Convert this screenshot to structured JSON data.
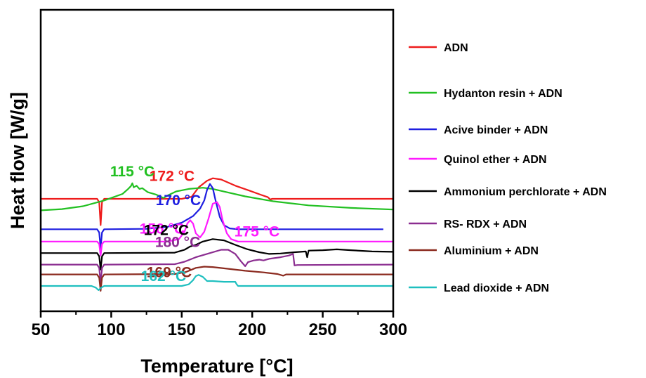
{
  "chart_data": {
    "type": "line",
    "title": "",
    "xlabel": "Temperature [°C]",
    "ylabel": "Heat flow [W/g]",
    "xlim": [
      50,
      300
    ],
    "xticks": [
      50,
      100,
      150,
      200,
      250,
      300
    ],
    "yticks_shown": false,
    "grid": false,
    "legend_position": "right, outside plot",
    "series": [
      {
        "name": "ADN",
        "color": "#ee1c1c",
        "offset": 10.6,
        "points": [
          [
            50,
            0
          ],
          [
            90,
            0
          ],
          [
            91.5,
            -0.4
          ],
          [
            92.5,
            -3.2
          ],
          [
            93.5,
            -0.4
          ],
          [
            95,
            0
          ],
          [
            150,
            0
          ],
          [
            157,
            0.25
          ],
          [
            162,
            1.4
          ],
          [
            168,
            2.2
          ],
          [
            172,
            2.5
          ],
          [
            178,
            2.35
          ],
          [
            188,
            1.6
          ],
          [
            198,
            1.0
          ],
          [
            206,
            0.5
          ],
          [
            211,
            0.2
          ],
          [
            213,
            -0.1
          ],
          [
            214,
            0
          ],
          [
            300,
            0
          ]
        ],
        "peak_label": {
          "text": "172 °C",
          "x": 172
        }
      },
      {
        "name": "Hydanton resin + ADN",
        "color": "#22c022",
        "offset": 9.2,
        "points": [
          [
            50,
            0
          ],
          [
            65,
            0.15
          ],
          [
            80,
            0.5
          ],
          [
            95,
            1.2
          ],
          [
            108,
            2.0
          ],
          [
            112,
            2.6
          ],
          [
            114,
            2.95
          ],
          [
            115,
            3.3
          ],
          [
            116,
            2.8
          ],
          [
            118,
            3.0
          ],
          [
            120,
            2.6
          ],
          [
            122,
            2.7
          ],
          [
            126,
            2.2
          ],
          [
            132,
            1.9
          ],
          [
            137,
            1.5
          ],
          [
            140,
            1.8
          ],
          [
            146,
            2.3
          ],
          [
            155,
            2.6
          ],
          [
            165,
            2.75
          ],
          [
            172,
            2.6
          ],
          [
            182,
            2.2
          ],
          [
            195,
            1.7
          ],
          [
            215,
            1.1
          ],
          [
            240,
            0.6
          ],
          [
            270,
            0.3
          ],
          [
            300,
            0.1
          ]
        ],
        "peak_label": {
          "text": "115 °C",
          "x": 115
        }
      },
      {
        "name": "Acive binder + ADN",
        "color": "#1e1ee0",
        "offset": 6.9,
        "points": [
          [
            50,
            0
          ],
          [
            90,
            0
          ],
          [
            91.5,
            -0.4
          ],
          [
            92.5,
            -2.3
          ],
          [
            93.5,
            -0.4
          ],
          [
            95,
            0
          ],
          [
            125,
            0.05
          ],
          [
            140,
            0.3
          ],
          [
            150,
            0.8
          ],
          [
            158,
            1.6
          ],
          [
            163,
            2.5
          ],
          [
            166,
            3.5
          ],
          [
            168,
            4.8
          ],
          [
            170,
            5.5
          ],
          [
            172,
            5.0
          ],
          [
            174,
            3.5
          ],
          [
            177,
            1.5
          ],
          [
            180,
            0.5
          ],
          [
            184,
            0.1
          ],
          [
            190,
            0
          ],
          [
            293,
            0
          ]
        ],
        "peak_label": {
          "text": "170 °C",
          "x": 170
        }
      },
      {
        "name": "Quinol ether + ADN",
        "color": "#ff1aff",
        "offset": 5.4,
        "points": [
          [
            50,
            0
          ],
          [
            90,
            0
          ],
          [
            91.5,
            -0.3
          ],
          [
            92.5,
            -1.7
          ],
          [
            93.5,
            -0.3
          ],
          [
            95,
            0
          ],
          [
            140,
            0
          ],
          [
            148,
            0.3
          ],
          [
            152,
            1.2
          ],
          [
            154,
            2.2
          ],
          [
            156,
            2.6
          ],
          [
            158,
            2.2
          ],
          [
            160,
            1.0
          ],
          [
            163,
            0.5
          ],
          [
            166,
            1.2
          ],
          [
            169,
            2.8
          ],
          [
            172,
            4.6
          ],
          [
            175,
            4.8
          ],
          [
            177,
            4.2
          ],
          [
            179,
            2.6
          ],
          [
            182,
            1.0
          ],
          [
            185,
            0.3
          ],
          [
            190,
            0
          ],
          [
            300,
            0
          ]
        ],
        "peak_label": {
          "text": "156 °C",
          "x": 156
        },
        "peak_label_2": {
          "text": "175 °C",
          "x": 175
        }
      },
      {
        "name": "Ammonium perchlorate + ADN",
        "color": "#000000",
        "offset": 4.0,
        "points": [
          [
            50,
            0
          ],
          [
            90,
            0
          ],
          [
            91.5,
            -0.4
          ],
          [
            92.5,
            -2.0
          ],
          [
            93.5,
            -0.4
          ],
          [
            95,
            0
          ],
          [
            145,
            0.05
          ],
          [
            152,
            0.4
          ],
          [
            156,
            0.8
          ],
          [
            160,
            1.0
          ],
          [
            165,
            1.4
          ],
          [
            172,
            1.7
          ],
          [
            180,
            1.55
          ],
          [
            188,
            1.0
          ],
          [
            196,
            0.5
          ],
          [
            205,
            0.1
          ],
          [
            212,
            -0.1
          ],
          [
            220,
            -0.05
          ],
          [
            230,
            0.1
          ],
          [
            238,
            0.2
          ],
          [
            239,
            -0.5
          ],
          [
            240,
            0.3
          ],
          [
            250,
            0.35
          ],
          [
            260,
            0.45
          ],
          [
            270,
            0.35
          ],
          [
            285,
            0.2
          ],
          [
            300,
            0.15
          ]
        ],
        "peak_label": {
          "text": "172 °C",
          "x": 172
        }
      },
      {
        "name": "RS- RDX + ADN",
        "color": "#8b2d90",
        "offset": 2.6,
        "points": [
          [
            50,
            0
          ],
          [
            90,
            0
          ],
          [
            91.5,
            -0.4
          ],
          [
            92.5,
            -2.3
          ],
          [
            93.5,
            -0.4
          ],
          [
            95,
            0
          ],
          [
            145,
            0.05
          ],
          [
            152,
            0.35
          ],
          [
            160,
            0.9
          ],
          [
            170,
            1.4
          ],
          [
            178,
            1.8
          ],
          [
            183,
            1.8
          ],
          [
            188,
            1.3
          ],
          [
            192,
            0.4
          ],
          [
            195,
            -0.2
          ],
          [
            197,
            0.3
          ],
          [
            201,
            0.5
          ],
          [
            205,
            0.6
          ],
          [
            208,
            0.5
          ],
          [
            212,
            0.7
          ],
          [
            220,
            0.9
          ],
          [
            226,
            1.1
          ],
          [
            229,
            1.3
          ],
          [
            230,
            -0.1
          ],
          [
            232,
            -0.05
          ],
          [
            300,
            0
          ]
        ],
        "peak_label": {
          "text": "180 °C",
          "x": 180
        }
      },
      {
        "name": "Aluminium + ADN",
        "color": "#8b2a1f",
        "offset": 1.4,
        "points": [
          [
            50,
            0
          ],
          [
            90,
            0
          ],
          [
            91.5,
            -0.4
          ],
          [
            92.5,
            -2.0
          ],
          [
            93.5,
            -0.4
          ],
          [
            95,
            0
          ],
          [
            145,
            0.05
          ],
          [
            153,
            0.3
          ],
          [
            160,
            0.8
          ],
          [
            166,
            0.95
          ],
          [
            172,
            0.9
          ],
          [
            182,
            0.7
          ],
          [
            195,
            0.45
          ],
          [
            208,
            0.25
          ],
          [
            218,
            0.05
          ],
          [
            222,
            -0.15
          ],
          [
            224,
            0
          ],
          [
            300,
            0
          ]
        ],
        "peak_label": {
          "text": "169 °C",
          "x": 169
        }
      },
      {
        "name": "Lead dioxide + ADN",
        "color": "#1fbfbf",
        "offset": 0,
        "points": [
          [
            50,
            0
          ],
          [
            86,
            0
          ],
          [
            89,
            -0.2
          ],
          [
            91,
            -0.5
          ],
          [
            93,
            -0.2
          ],
          [
            95,
            0
          ],
          [
            150,
            0
          ],
          [
            155,
            0.2
          ],
          [
            158,
            0.7
          ],
          [
            160,
            1.2
          ],
          [
            162,
            1.35
          ],
          [
            165,
            1.1
          ],
          [
            168,
            0.6
          ],
          [
            172,
            0.6
          ],
          [
            180,
            0.5
          ],
          [
            188,
            0.5
          ],
          [
            189,
            0.2
          ],
          [
            190,
            0
          ],
          [
            300,
            0
          ]
        ],
        "peak_label": {
          "text": "162 °C",
          "x": 162
        }
      }
    ]
  }
}
